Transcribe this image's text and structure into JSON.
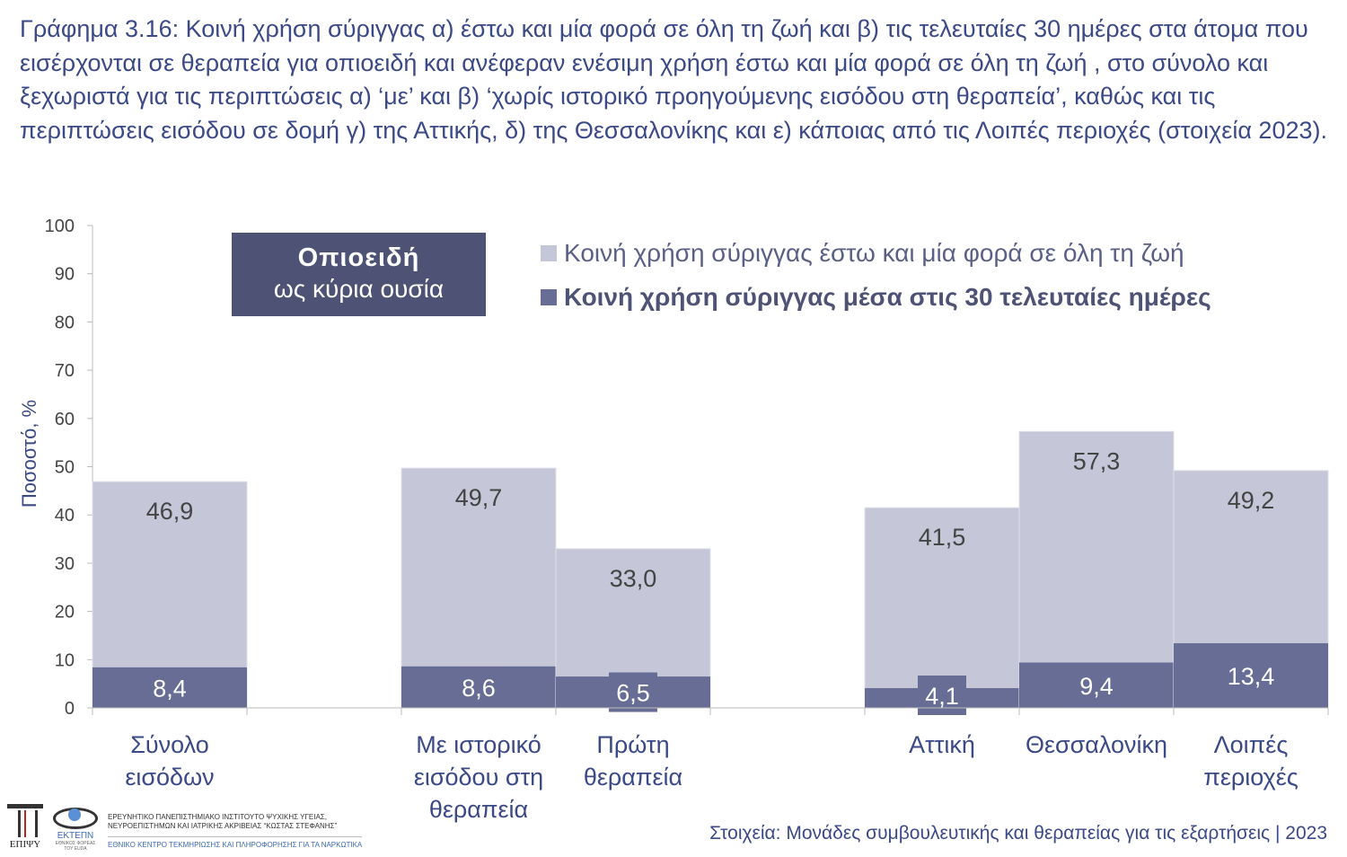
{
  "title": "Γράφημα 3.16: Κοινή χρήση σύριγγας α) έστω και μία φορά σε όλη τη ζωή και β) τις τελευταίες 30 ημέρες στα άτομα που εισέρχονται σε θεραπεία για οπιοειδή και ανέφεραν ενέσιμη χρήση έστω και μία φορά σε όλη τη ζωή , στο σύνολο και ξεχωριστά για τις περιπτώσεις α) ‘με’ και β) ‘χωρίς ιστορικό προηγούμενης εισόδου στη θεραπεία’, καθώς και τις περιπτώσεις εισόδου σε δομή γ) της Αττικής, δ) της Θεσσαλονίκης και ε) κάποιας από τις Λοιπές περιοχές (στοιχεία 2023).",
  "badge": {
    "line1": "Οπιοειδή",
    "line2": "ως κύρια ουσία"
  },
  "source": "Στοιχεία: Μονάδες συμβουλευτικής και θεραπείας για τις εξαρτήσεις | 2023",
  "logos": {
    "epipsy": "ΕΠΙΨΥ",
    "ektepn": "ΕΚΤΕΠΝ",
    "ektepn_sub": "ΕΘΝΙΚΟΣ ΦΟΡΕΑΣ ΤΟΥ EUDA",
    "line1": "ΕΡΕΥΝΗΤΙΚΟ ΠΑΝΕΠΙΣΤΗΜΙΑΚΟ ΙΝΣΤΙΤΟΥΤΟ ΨΥΧΙΚΗΣ ΥΓΕΙΑΣ,",
    "line2": "ΝΕΥΡΟΕΠΙΣΤΗΜΩΝ ΚΑΙ ΙΑΤΡΙΚΗΣ ΑΚΡΙΒΕΙΑΣ “ΚΩΣΤΑΣ ΣΤΕΦΑΝΗΣ”",
    "line3": "ΕΘΝΙΚΟ ΚΕΝΤΡΟ ΤΕΚΜΗΡΙΩΣΗΣ ΚΑΙ ΠΛΗΡΟΦΟΡΗΣΗΣ ΓΙΑ ΤΑ ΝΑΡΚΩΤΙΚΑ"
  },
  "colors": {
    "lifetime": "#c5c6d8",
    "last30": "#686d96",
    "text": "#3b4a87"
  },
  "chart_data": {
    "type": "bar",
    "ylabel": "Ποσοστό, %",
    "ylim": [
      0,
      100
    ],
    "yticks": [
      "0",
      "10",
      "20",
      "30",
      "40",
      "50",
      "60",
      "70",
      "80",
      "90",
      "100"
    ],
    "legend_position": "top-right",
    "categories": [
      [
        "Σύνολο",
        "εισόδων"
      ],
      [],
      [
        "Με ιστορικό",
        "εισόδου στη",
        "θεραπεία"
      ],
      [
        "Πρώτη",
        "θεραπεία"
      ],
      [],
      [
        "Αττική"
      ],
      [
        "Θεσσαλονίκη"
      ],
      [
        "Λοιπές",
        "περιοχές"
      ]
    ],
    "series": [
      {
        "name": "Κοινή χρήση σύριγγας έστω και μία φορά σε όλη τη ζωή",
        "values": [
          46.9,
          null,
          49.7,
          33.0,
          null,
          41.5,
          57.3,
          49.2
        ],
        "labels": [
          "46,9",
          "",
          "49,7",
          "33,0",
          "",
          "41,5",
          "57,3",
          "49,2"
        ]
      },
      {
        "name": "Κοινή χρήση σύριγγας μέσα στις 30 τελευταίες ημέρες",
        "values": [
          8.4,
          null,
          8.6,
          6.5,
          null,
          4.1,
          9.4,
          13.4
        ],
        "labels": [
          "8,4",
          "",
          "8,6",
          "6,5",
          "",
          "4,1",
          "9,4",
          "13,4"
        ]
      }
    ]
  }
}
